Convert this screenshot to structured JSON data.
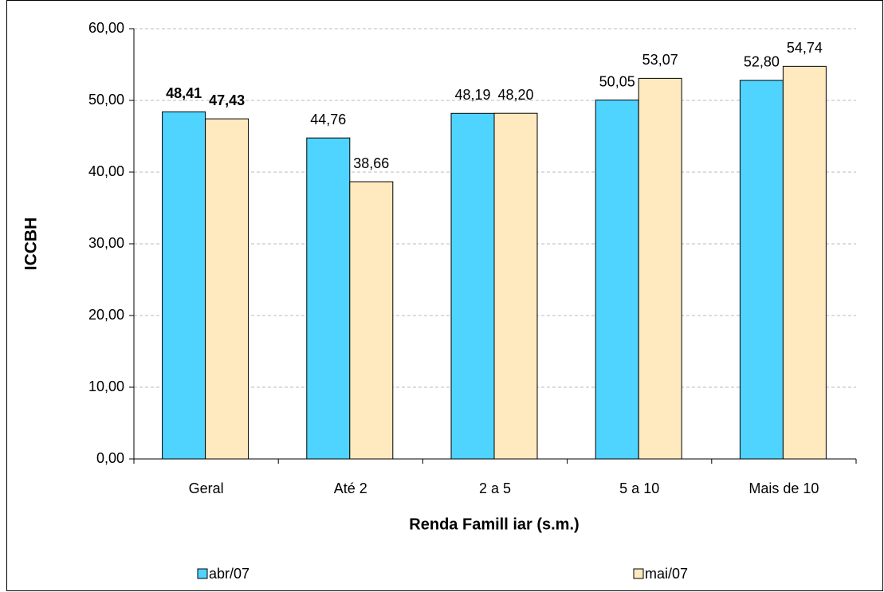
{
  "chart_data": {
    "type": "bar",
    "x_label": "Renda Famill iar (s.m.)",
    "y_label": "ICCBH",
    "categories": [
      "Geral",
      "Até 2",
      "2 a 5",
      "5 a 10",
      "Mais de 10"
    ],
    "series": [
      {
        "name": "abr/07",
        "color": "#4fd3ff",
        "values": [
          48.41,
          44.76,
          48.19,
          50.05,
          52.8
        ],
        "value_labels": [
          "48,41",
          "44,76",
          "48,19",
          "50,05",
          "52,80"
        ]
      },
      {
        "name": "mai/07",
        "color": "#ffe9be",
        "values": [
          47.43,
          38.66,
          48.2,
          53.07,
          54.74
        ],
        "value_labels": [
          "47,43",
          "38,66",
          "48,20",
          "53,07",
          "54,74"
        ]
      }
    ],
    "ylim": [
      0,
      60
    ],
    "yticks": [
      {
        "value": 0,
        "label": "0,00"
      },
      {
        "value": 10,
        "label": "10,00"
      },
      {
        "value": 20,
        "label": "20,00"
      },
      {
        "value": 30,
        "label": "30,00"
      },
      {
        "value": 40,
        "label": "40,00"
      },
      {
        "value": 50,
        "label": "50,00"
      },
      {
        "value": 60,
        "label": "60,00"
      }
    ],
    "grid": true,
    "legend": "bottom"
  }
}
